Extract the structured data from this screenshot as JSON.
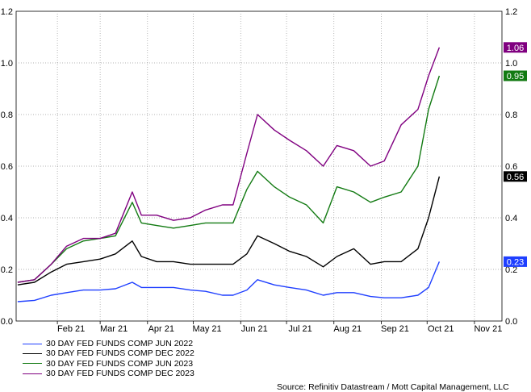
{
  "chart_data": {
    "type": "line",
    "y_ticks": [
      "0.0",
      "0.2",
      "0.4",
      "0.6",
      "0.8",
      "1.0",
      "1.2"
    ],
    "ylim": [
      0,
      1.2
    ],
    "x_ticks": [
      "Feb 21",
      "Mar 21",
      "Apr 21",
      "May 21",
      "Jun 21",
      "Jul 21",
      "Aug 21",
      "Sep 21",
      "Oct 21",
      "Nov 21"
    ],
    "x_tick_dates": [
      "2021-02-01",
      "2021-03-01",
      "2021-04-01",
      "2021-05-01",
      "2021-06-01",
      "2021-07-01",
      "2021-08-01",
      "2021-09-01",
      "2021-10-01",
      "2021-11-01"
    ],
    "xlim": [
      "2021-01-05",
      "2021-11-19"
    ],
    "grid": "dotted",
    "legend_position": "bottom-left",
    "x": [
      "2021-01-06",
      "2021-01-17",
      "2021-01-28",
      "2021-02-07",
      "2021-02-18",
      "2021-03-01",
      "2021-03-11",
      "2021-03-22",
      "2021-03-28",
      "2021-04-07",
      "2021-04-18",
      "2021-04-29",
      "2021-05-09",
      "2021-05-20",
      "2021-05-27",
      "2021-06-05",
      "2021-06-12",
      "2021-06-23",
      "2021-07-03",
      "2021-07-14",
      "2021-07-25",
      "2021-08-03",
      "2021-08-14",
      "2021-08-25",
      "2021-09-03",
      "2021-09-14",
      "2021-09-25",
      "2021-10-02",
      "2021-10-09"
    ],
    "series": [
      {
        "name": "30 DAY FED FUNDS COMP JUN 2022",
        "color": "#1f3fff",
        "last_label": "0.23",
        "values": [
          0.075,
          0.08,
          0.1,
          0.11,
          0.12,
          0.12,
          0.125,
          0.15,
          0.13,
          0.13,
          0.13,
          0.12,
          0.115,
          0.1,
          0.1,
          0.12,
          0.16,
          0.14,
          0.13,
          0.12,
          0.1,
          0.11,
          0.11,
          0.095,
          0.09,
          0.09,
          0.1,
          0.13,
          0.23
        ]
      },
      {
        "name": "30 DAY FED FUNDS COMP DEC 2022",
        "color": "#000000",
        "last_label": "0.56",
        "values": [
          0.14,
          0.15,
          0.19,
          0.22,
          0.23,
          0.24,
          0.26,
          0.31,
          0.25,
          0.23,
          0.23,
          0.22,
          0.22,
          0.22,
          0.22,
          0.26,
          0.33,
          0.3,
          0.27,
          0.25,
          0.21,
          0.25,
          0.28,
          0.22,
          0.23,
          0.23,
          0.28,
          0.4,
          0.56
        ]
      },
      {
        "name": "30 DAY FED FUNDS COMP JUN 2023",
        "color": "#127a12",
        "last_label": "0.95",
        "values": [
          0.15,
          0.16,
          0.22,
          0.28,
          0.31,
          0.32,
          0.33,
          0.46,
          0.38,
          0.37,
          0.36,
          0.37,
          0.38,
          0.38,
          0.38,
          0.51,
          0.58,
          0.52,
          0.48,
          0.45,
          0.38,
          0.52,
          0.5,
          0.46,
          0.48,
          0.5,
          0.6,
          0.82,
          0.95
        ]
      },
      {
        "name": "30 DAY FED FUNDS COMP DEC 2023",
        "color": "#800080",
        "last_label": "1.06",
        "values": [
          0.15,
          0.16,
          0.22,
          0.29,
          0.32,
          0.32,
          0.34,
          0.5,
          0.41,
          0.41,
          0.39,
          0.4,
          0.43,
          0.45,
          0.45,
          0.65,
          0.8,
          0.74,
          0.7,
          0.66,
          0.6,
          0.68,
          0.66,
          0.6,
          0.62,
          0.76,
          0.82,
          0.95,
          1.06
        ]
      }
    ],
    "source": "Source: Refinitiv Datastream / Mott Capital Management, LLC"
  }
}
